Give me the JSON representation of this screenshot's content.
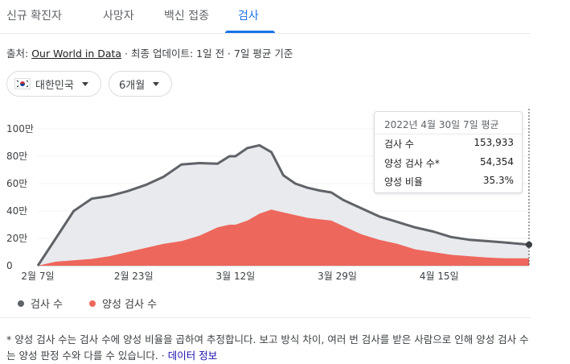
{
  "tabs": [
    {
      "label": "신규 확진자"
    },
    {
      "label": "사망자"
    },
    {
      "label": "백신 접종"
    },
    {
      "label": "검사"
    }
  ],
  "source": {
    "prefix": "출처: ",
    "link": "Our World in Data",
    "suffix": " · 최종 업데이트: 1일 전 · 7일 평균 기준"
  },
  "filters": {
    "country": "대한민국",
    "period": "6개월"
  },
  "tooltip": {
    "title": "2022년 4월 30일 7일 평균",
    "rows": [
      {
        "label": "검사 수",
        "value": "153,933"
      },
      {
        "label": "양성 검사 수*",
        "value": "54,354"
      },
      {
        "label": "양성 비율",
        "value": "35.3%"
      }
    ]
  },
  "legend": [
    {
      "label": "검사 수",
      "color": "#5f6368"
    },
    {
      "label": "양성 검사 수",
      "color": "#ee675c"
    }
  ],
  "footnote": {
    "text": "* 양성 검사 수는 검사 수에 양성 비율을 곱하여 추정합니다. 보고 방식 차이, 여러 번 검사를 받은 사람으로 인해 양성 검사 수는 양성 판정 수와 다를 수 있습니다. · ",
    "link": "데이터 정보"
  },
  "colors": {
    "tests_fill": "#e8eaed",
    "tests_line": "#5f6368",
    "positive_fill": "#ee675c",
    "accent": "#1a73e8"
  },
  "chart_data": {
    "type": "area",
    "x": [
      "2022-02-07",
      "2022-02-10",
      "2022-02-13",
      "2022-02-16",
      "2022-02-19",
      "2022-02-22",
      "2022-02-25",
      "2022-02-28",
      "2022-03-03",
      "2022-03-06",
      "2022-03-09",
      "2022-03-11",
      "2022-03-12",
      "2022-03-14",
      "2022-03-16",
      "2022-03-18",
      "2022-03-20",
      "2022-03-22",
      "2022-03-24",
      "2022-03-26",
      "2022-03-28",
      "2022-03-30",
      "2022-04-02",
      "2022-04-05",
      "2022-04-08",
      "2022-04-11",
      "2022-04-14",
      "2022-04-17",
      "2022-04-20",
      "2022-04-23",
      "2022-04-26",
      "2022-04-30"
    ],
    "x_tick_labels": [
      "2월 7일",
      "2월 23일",
      "3월 12일",
      "3월 29일",
      "4월 15일"
    ],
    "x_tick_dates": [
      "2022-02-07",
      "2022-02-23",
      "2022-03-12",
      "2022-03-29",
      "2022-04-15"
    ],
    "y_tick_labels": [
      "0",
      "20만",
      "40만",
      "60만",
      "80만",
      "100만"
    ],
    "y_tick_values": [
      0,
      200000,
      400000,
      600000,
      800000,
      1000000
    ],
    "ylim": [
      0,
      1000000
    ],
    "series": [
      {
        "name": "검사 수",
        "values": [
          0,
          200000,
          400000,
          490000,
          510000,
          545000,
          590000,
          650000,
          740000,
          750000,
          745000,
          800000,
          800000,
          860000,
          880000,
          830000,
          660000,
          600000,
          570000,
          550000,
          535000,
          480000,
          420000,
          360000,
          320000,
          280000,
          250000,
          210000,
          190000,
          180000,
          170000,
          153933
        ]
      },
      {
        "name": "양성 검사 수",
        "values": [
          0,
          30000,
          40000,
          50000,
          70000,
          100000,
          130000,
          160000,
          180000,
          220000,
          280000,
          300000,
          300000,
          330000,
          380000,
          410000,
          390000,
          370000,
          350000,
          340000,
          330000,
          290000,
          230000,
          190000,
          160000,
          120000,
          100000,
          80000,
          70000,
          60000,
          55000,
          54354
        ]
      }
    ]
  }
}
